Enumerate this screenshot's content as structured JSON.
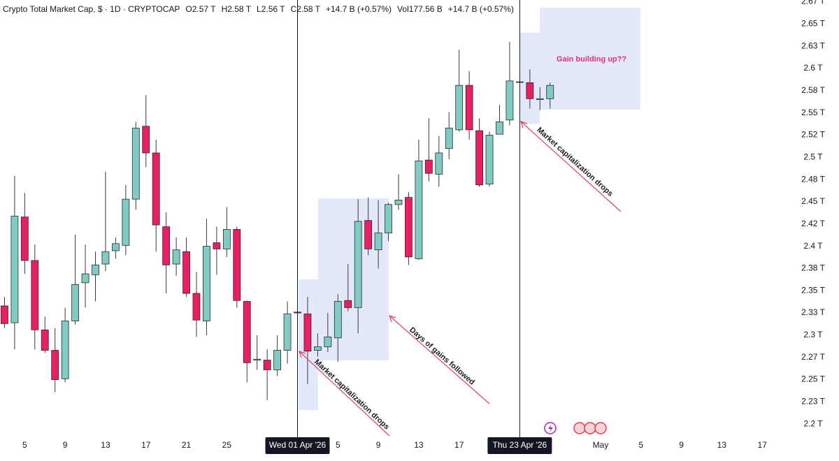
{
  "chart_data": {
    "type": "candlestick",
    "title": "Crypto Total Market Cap, $ · 1D · CRYPTOCAP",
    "legend_values": [
      "O2.57 T",
      "H2.58 T",
      "L2.56 T",
      "C2.58 T",
      "+14.7 B (+0.57%)",
      "Vol177.56 B",
      "+14.7 B (+0.57%)"
    ],
    "x": [
      "2026-03-03",
      "2026-03-04",
      "2026-03-05",
      "2026-03-06",
      "2026-03-07",
      "2026-03-08",
      "2026-03-09",
      "2026-03-10",
      "2026-03-11",
      "2026-03-12",
      "2026-03-13",
      "2026-03-14",
      "2026-03-15",
      "2026-03-16",
      "2026-03-17",
      "2026-03-18",
      "2026-03-19",
      "2026-03-20",
      "2026-03-21",
      "2026-03-22",
      "2026-03-23",
      "2026-03-24",
      "2026-03-25",
      "2026-03-26",
      "2026-03-27",
      "2026-03-28",
      "2026-03-29",
      "2026-03-30",
      "2026-03-31",
      "2026-04-01",
      "2026-04-02",
      "2026-04-03",
      "2026-04-04",
      "2026-04-05",
      "2026-04-06",
      "2026-04-07",
      "2026-04-08",
      "2026-04-09",
      "2026-04-10",
      "2026-04-11",
      "2026-04-12",
      "2026-04-13",
      "2026-04-14",
      "2026-04-15",
      "2026-04-16",
      "2026-04-17",
      "2026-04-18",
      "2026-04-19",
      "2026-04-20",
      "2026-04-21",
      "2026-04-22",
      "2026-04-23",
      "2026-04-24",
      "2026-04-25",
      "2026-04-26"
    ],
    "open": [
      2.333,
      2.314,
      2.433,
      2.384,
      2.306,
      2.283,
      2.251,
      2.316,
      2.359,
      2.368,
      2.38,
      2.395,
      2.401,
      2.453,
      2.535,
      2.505,
      2.422,
      2.38,
      2.394,
      2.347,
      2.316,
      2.404,
      2.397,
      2.419,
      2.338,
      2.272,
      2.272,
      2.261,
      2.283,
      2.326,
      2.324,
      2.283,
      2.287,
      2.297,
      2.339,
      2.331,
      2.429,
      2.396,
      2.415,
      2.447,
      2.455,
      2.386,
      2.497,
      2.481,
      2.51,
      2.531,
      2.581,
      2.53,
      2.47,
      2.526,
      2.542,
      2.585,
      2.584,
      2.565,
      2.566
    ],
    "high": [
      2.343,
      2.479,
      2.46,
      2.402,
      2.321,
      2.308,
      2.331,
      2.413,
      2.402,
      2.394,
      2.484,
      2.41,
      2.469,
      2.54,
      2.57,
      2.52,
      2.438,
      2.41,
      2.41,
      2.371,
      2.431,
      2.422,
      2.444,
      2.422,
      2.339,
      2.3,
      2.284,
      2.3,
      2.338,
      2.327,
      2.343,
      2.302,
      2.325,
      2.346,
      2.38,
      2.453,
      2.455,
      2.452,
      2.449,
      2.481,
      2.461,
      2.52,
      2.544,
      2.524,
      2.551,
      2.621,
      2.597,
      2.544,
      2.529,
      2.559,
      2.63,
      2.586,
      2.599,
      2.579,
      2.584
    ],
    "low": [
      2.308,
      2.284,
      2.369,
      2.284,
      2.28,
      2.236,
      2.247,
      2.312,
      2.331,
      2.338,
      2.372,
      2.386,
      2.39,
      2.441,
      2.489,
      2.394,
      2.347,
      2.367,
      2.343,
      2.298,
      2.3,
      2.368,
      2.388,
      2.331,
      2.247,
      2.261,
      2.227,
      2.254,
      2.268,
      2.324,
      2.245,
      2.276,
      2.281,
      2.27,
      2.327,
      2.302,
      2.39,
      2.375,
      2.406,
      2.441,
      2.379,
      2.385,
      2.473,
      2.467,
      2.498,
      2.529,
      2.52,
      2.467,
      2.467,
      2.526,
      2.536,
      2.584,
      2.555,
      2.553,
      2.555
    ],
    "close": [
      2.313,
      2.434,
      2.384,
      2.306,
      2.283,
      2.25,
      2.316,
      2.357,
      2.369,
      2.379,
      2.394,
      2.403,
      2.453,
      2.533,
      2.505,
      2.424,
      2.379,
      2.396,
      2.347,
      2.317,
      2.4,
      2.397,
      2.419,
      2.339,
      2.269,
      2.273,
      2.261,
      2.283,
      2.324,
      2.325,
      2.282,
      2.287,
      2.298,
      2.338,
      2.331,
      2.428,
      2.397,
      2.415,
      2.447,
      2.452,
      2.388,
      2.496,
      2.482,
      2.505,
      2.533,
      2.581,
      2.531,
      2.469,
      2.525,
      2.54,
      2.586,
      2.585,
      2.566,
      2.566,
      2.581
    ],
    "up_color": "#80cbc4",
    "down_color": "#e91e63",
    "xlim": [
      "2026-03-02",
      "2026-05-21"
    ],
    "xticks": [
      {
        "value": "2026-03-05",
        "label": "5"
      },
      {
        "value": "2026-03-09",
        "label": "9"
      },
      {
        "value": "2026-03-13",
        "label": "13"
      },
      {
        "value": "2026-03-17",
        "label": "17"
      },
      {
        "value": "2026-03-21",
        "label": "21"
      },
      {
        "value": "2026-03-25",
        "label": "25"
      },
      {
        "value": "2026-04-05",
        "label": "5"
      },
      {
        "value": "2026-04-09",
        "label": "9"
      },
      {
        "value": "2026-04-13",
        "label": "13"
      },
      {
        "value": "2026-04-17",
        "label": "17"
      },
      {
        "value": "2026-05-01",
        "label": "May"
      },
      {
        "value": "2026-05-05",
        "label": "5"
      },
      {
        "value": "2026-05-09",
        "label": "9"
      },
      {
        "value": "2026-05-13",
        "label": "13"
      },
      {
        "value": "2026-05-17",
        "label": "17"
      }
    ],
    "markers": [
      {
        "x": "2026-04-01",
        "label": "Wed 01 Apr '26"
      },
      {
        "x": "2026-04-23",
        "label": "Thu 23 Apr '26"
      }
    ],
    "ylim": [
      2.186,
      2.677
    ],
    "yticks": [
      {
        "value": 2.2,
        "label": "2.2 T"
      },
      {
        "value": 2.225,
        "label": "2.23 T"
      },
      {
        "value": 2.25,
        "label": "2.25 T"
      },
      {
        "value": 2.275,
        "label": "2.27 T"
      },
      {
        "value": 2.3,
        "label": "2.3 T"
      },
      {
        "value": 2.325,
        "label": "2.33 T"
      },
      {
        "value": 2.35,
        "label": "2.35 T"
      },
      {
        "value": 2.375,
        "label": "2.38 T"
      },
      {
        "value": 2.4,
        "label": "2.4 T"
      },
      {
        "value": 2.425,
        "label": "2.42 T"
      },
      {
        "value": 2.45,
        "label": "2.45 T"
      },
      {
        "value": 2.475,
        "label": "2.48 T"
      },
      {
        "value": 2.5,
        "label": "2.5 T"
      },
      {
        "value": 2.525,
        "label": "2.52 T"
      },
      {
        "value": 2.55,
        "label": "2.55 T"
      },
      {
        "value": 2.575,
        "label": "2.58 T"
      },
      {
        "value": 2.6,
        "label": "2.6 T"
      },
      {
        "value": 2.625,
        "label": "2.63 T"
      },
      {
        "value": 2.65,
        "label": "2.65 T"
      },
      {
        "value": 2.675,
        "label": "2.67 T"
      }
    ],
    "annotations": [
      "Gain building up??",
      "Market capitalization drops",
      "Days of gains followed",
      "Market capitalization drops"
    ]
  }
}
